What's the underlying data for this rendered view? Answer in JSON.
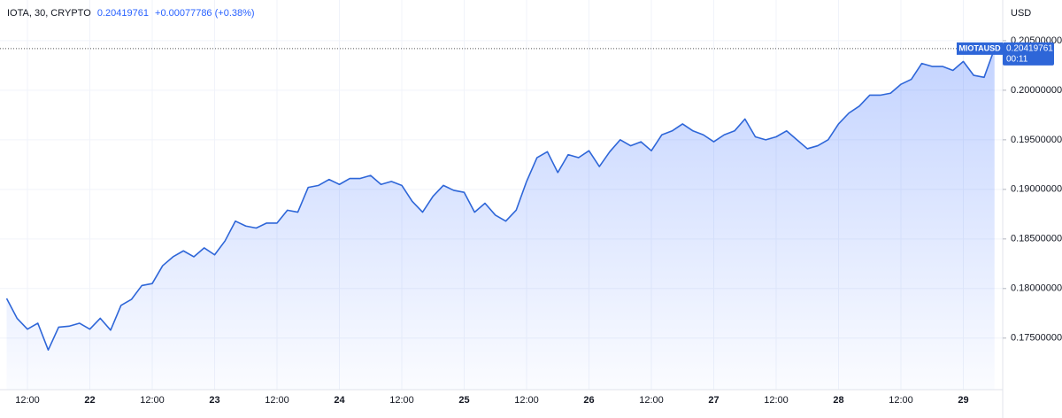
{
  "header": {
    "symbol": "IOTA, 30, CRYPTO",
    "change": "+0.00077786 (+0.38%)"
  },
  "chart_data": {
    "type": "area",
    "currency": "USD",
    "last_price": 0.20419761,
    "countdown": "00:11",
    "categories": [
      null,
      null,
      "12:00",
      null,
      null,
      null,
      null,
      null,
      "22",
      null,
      null,
      null,
      null,
      null,
      "12:00",
      null,
      null,
      null,
      null,
      null,
      "23",
      null,
      null,
      null,
      null,
      null,
      "12:00",
      null,
      null,
      null,
      null,
      null,
      "24",
      null,
      null,
      null,
      null,
      null,
      "12:00",
      null,
      null,
      null,
      null,
      null,
      "25",
      null,
      null,
      null,
      null,
      null,
      "12:00",
      null,
      null,
      null,
      null,
      null,
      "26",
      null,
      null,
      null,
      null,
      null,
      "12:00",
      null,
      null,
      null,
      null,
      null,
      "27",
      null,
      null,
      null,
      null,
      null,
      "12:00",
      null,
      null,
      null,
      null,
      null,
      "28",
      null,
      null,
      null,
      null,
      null,
      "12:00",
      null,
      null,
      null,
      null,
      null,
      "29",
      null,
      null,
      null
    ],
    "series": [
      {
        "name": "MIOTAUSD",
        "color": "#2e66d8",
        "values": [
          0.179,
          0.177,
          0.1759,
          0.1765,
          0.1738,
          0.1761,
          0.1762,
          0.1765,
          0.1759,
          0.177,
          0.1758,
          0.1783,
          0.1789,
          0.1803,
          0.1805,
          0.1823,
          0.1832,
          0.1838,
          0.1832,
          0.1841,
          0.1834,
          0.1848,
          0.1868,
          0.1863,
          0.1861,
          0.1866,
          0.1866,
          0.1879,
          0.1877,
          0.1902,
          0.1904,
          0.191,
          0.1905,
          0.1911,
          0.1911,
          0.1914,
          0.1905,
          0.1908,
          0.1904,
          0.1888,
          0.1877,
          0.1893,
          0.1904,
          0.1899,
          0.1897,
          0.1877,
          0.1886,
          0.1874,
          0.1868,
          0.1879,
          0.1908,
          0.1932,
          0.1938,
          0.1917,
          0.1935,
          0.1932,
          0.1939,
          0.1923,
          0.1938,
          0.195,
          0.1944,
          0.1948,
          0.1939,
          0.1955,
          0.1959,
          0.1966,
          0.1959,
          0.1955,
          0.1948,
          0.1955,
          0.1959,
          0.1971,
          0.1953,
          0.195,
          0.1953,
          0.1959,
          0.195,
          0.1941,
          0.1944,
          0.195,
          0.1966,
          0.1977,
          0.1984,
          0.1995,
          0.1995,
          0.1997,
          0.2006,
          0.2011,
          0.2027,
          0.2024,
          0.2024,
          0.202,
          0.2029,
          0.2015,
          0.2013,
          0.2042
        ]
      }
    ],
    "ylim": [
      0.1698,
      0.2091
    ],
    "yticks": [
      {
        "value": 0.175,
        "label": "0.17500000"
      },
      {
        "value": 0.18,
        "label": "0.18000000"
      },
      {
        "value": 0.185,
        "label": "0.18500000"
      },
      {
        "value": 0.19,
        "label": "0.19000000"
      },
      {
        "value": 0.195,
        "label": "0.19500000"
      },
      {
        "value": 0.2,
        "label": "0.20000000"
      },
      {
        "value": 0.205,
        "label": "0.20500000"
      }
    ],
    "grid": true
  }
}
